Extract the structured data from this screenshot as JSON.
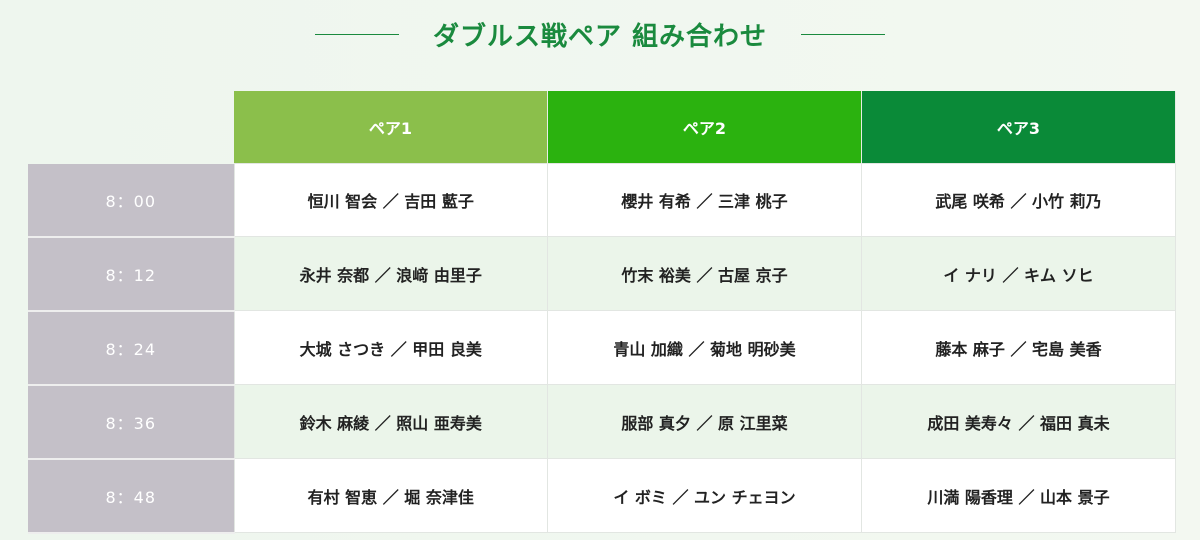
{
  "title": "ダブルス戦ペア 組み合わせ",
  "colors": {
    "pair1": "#8bbf4b",
    "pair2": "#2bb20f",
    "pair3": "#0a8a38",
    "title": "#1a8a3e",
    "time_bg": "#c4c0c8"
  },
  "headers": [
    "ペア1",
    "ペア2",
    "ペア3"
  ],
  "rows": [
    {
      "time": "8：00",
      "pairs": [
        "恒川 智会 ／ 吉田 藍子",
        "櫻井 有希 ／ 三津 桃子",
        "武尾 咲希 ／ 小竹 莉乃"
      ]
    },
    {
      "time": "8：12",
      "pairs": [
        "永井 奈都 ／ 浪﨑 由里子",
        "竹末 裕美 ／ 古屋 京子",
        "イ ナリ ／ キム ソヒ"
      ]
    },
    {
      "time": "8：24",
      "pairs": [
        "大城 さつき ／ 甲田 良美",
        "青山 加織 ／ 菊地 明砂美",
        "藤本 麻子 ／ 宅島 美香"
      ]
    },
    {
      "time": "8：36",
      "pairs": [
        "鈴木 麻綾 ／ 照山 亜寿美",
        "服部 真夕 ／ 原 江里菜",
        "成田 美寿々 ／ 福田 真未"
      ]
    },
    {
      "time": "8：48",
      "pairs": [
        "有村 智恵 ／ 堀 奈津佳",
        "イ ボミ ／ ユン チェヨン",
        "川満 陽香理 ／ 山本 景子"
      ]
    }
  ]
}
